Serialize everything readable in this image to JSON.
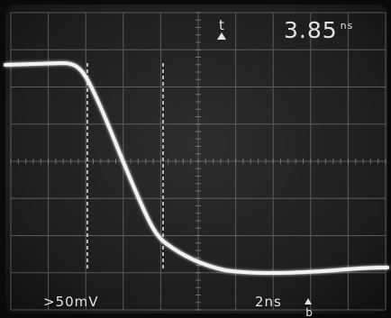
{
  "time_delta_readout": {
    "value": "3.85",
    "unit": "ns"
  },
  "delta_t_marker": "t",
  "vertical_scale": ">50mV",
  "horizontal_scale": "2ns",
  "channel_marker": "b",
  "colors": {
    "screen": "#1c1c1c",
    "graticule": "#8a8a8a",
    "trace": "#f2f2f2",
    "cursor": "#cfcfcf",
    "text": "#e2e2e2"
  }
}
